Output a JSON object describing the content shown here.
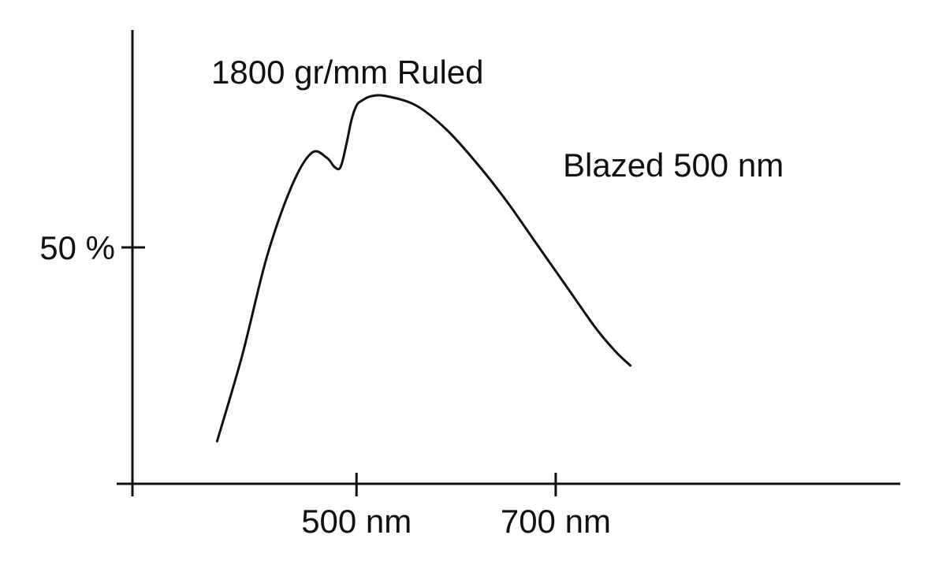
{
  "chart_data": {
    "type": "line",
    "annotations": {
      "grating": "1800 gr/mm Ruled",
      "blaze": "Blazed 500 nm"
    },
    "x_ticks": [
      {
        "value": 500,
        "label": "500 nm"
      },
      {
        "value": 700,
        "label": "700 nm"
      }
    ],
    "y_ticks": [
      {
        "value": 50,
        "label": "50 %"
      }
    ],
    "xlim": [
      275,
      1046
    ],
    "ylim": [
      0,
      96
    ],
    "grid": false,
    "series": [
      {
        "x": [
          360,
          385,
          410,
          435,
          455,
          470,
          478,
          484,
          490,
          495,
          500,
          505,
          515,
          530,
          560,
          590,
          620,
          650,
          680,
          710,
          740,
          760,
          775
        ],
        "y": [
          9,
          27,
          48,
          63,
          70,
          69,
          67,
          67,
          72,
          77,
          80,
          81,
          82,
          82,
          80,
          75,
          68,
          60,
          51,
          42,
          33,
          28,
          25
        ]
      }
    ],
    "colors": {
      "line": "#111111",
      "background": "#ffffff"
    }
  }
}
